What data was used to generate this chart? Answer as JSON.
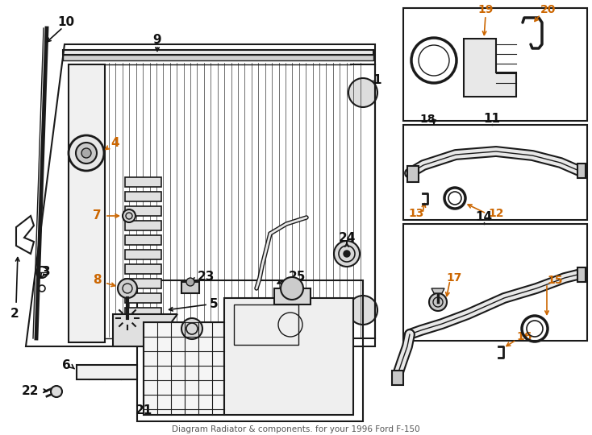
{
  "bg_color": "#ffffff",
  "lc": "#1a1a1a",
  "oc": "#cc6600",
  "bc": "#111111",
  "title": "Diagram Radiator & components. for your 1996 Ford F-150",
  "fw": 7.34,
  "fh": 5.4,
  "dpi": 100
}
